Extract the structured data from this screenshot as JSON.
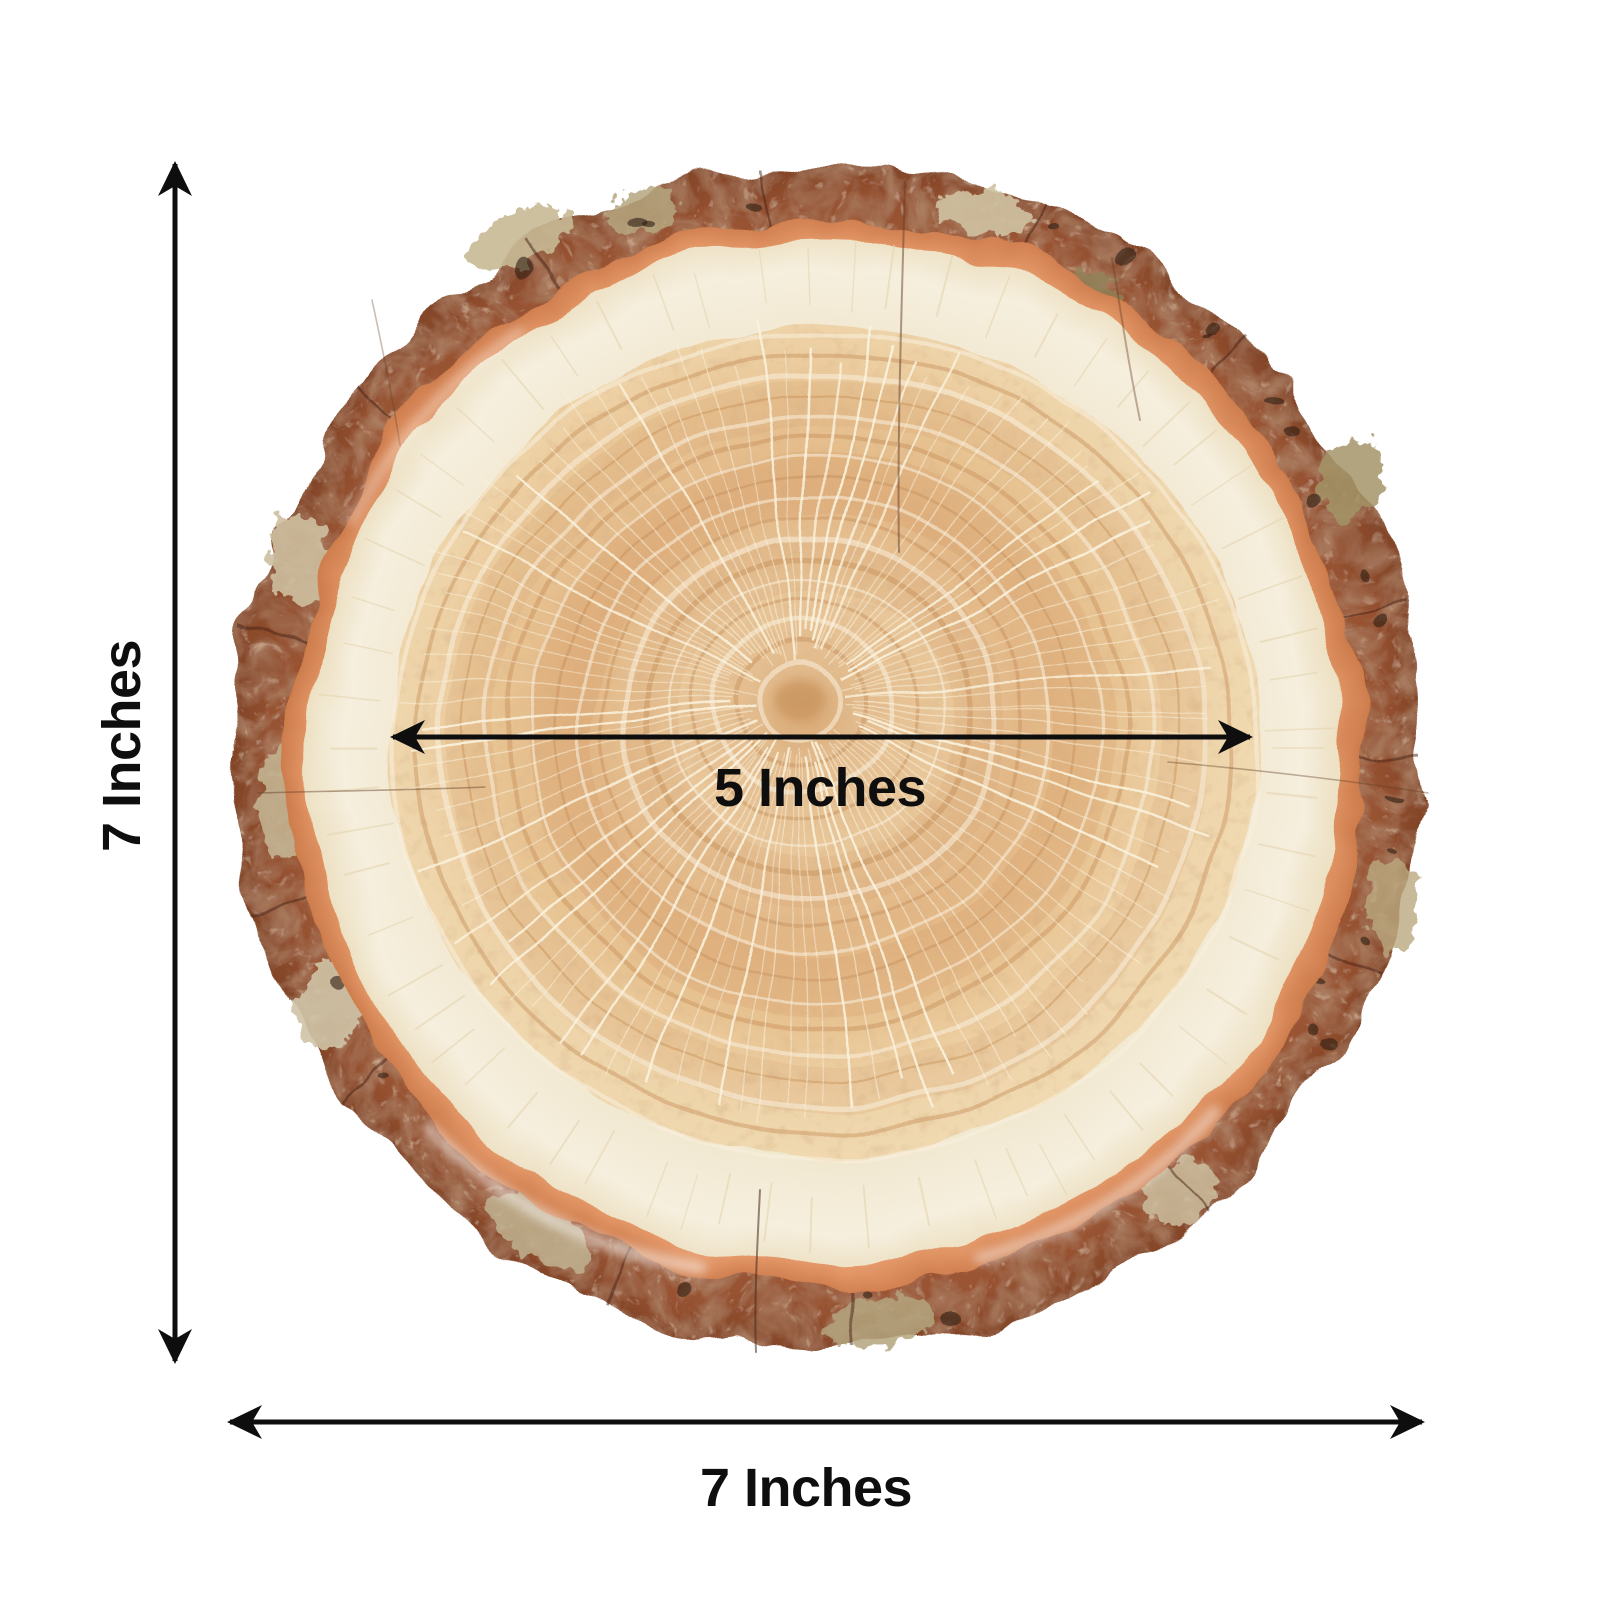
{
  "product_diagram": {
    "subject": "natural wood slice cross-section with bark edge and growth rings",
    "outer_height": {
      "label": "7 Inches",
      "value": 7,
      "unit": "inches"
    },
    "outer_width": {
      "label": "7 Inches",
      "value": 7,
      "unit": "inches"
    },
    "inner_diameter": {
      "label": "5 Inches",
      "value": 5,
      "unit": "inches"
    },
    "colors": {
      "background": "#ffffff",
      "annotation": "#0e0e0e",
      "bark": "#a2593a",
      "bark_dark": "#7e4226",
      "bark_lichen": "#c8b995",
      "cambium_ring": "#e89a67",
      "sapwood": "#f2e9d1",
      "heartwood": "#e5bd8e",
      "growth_ring": "#c68c56",
      "ray_line": "#fbf3de"
    }
  }
}
